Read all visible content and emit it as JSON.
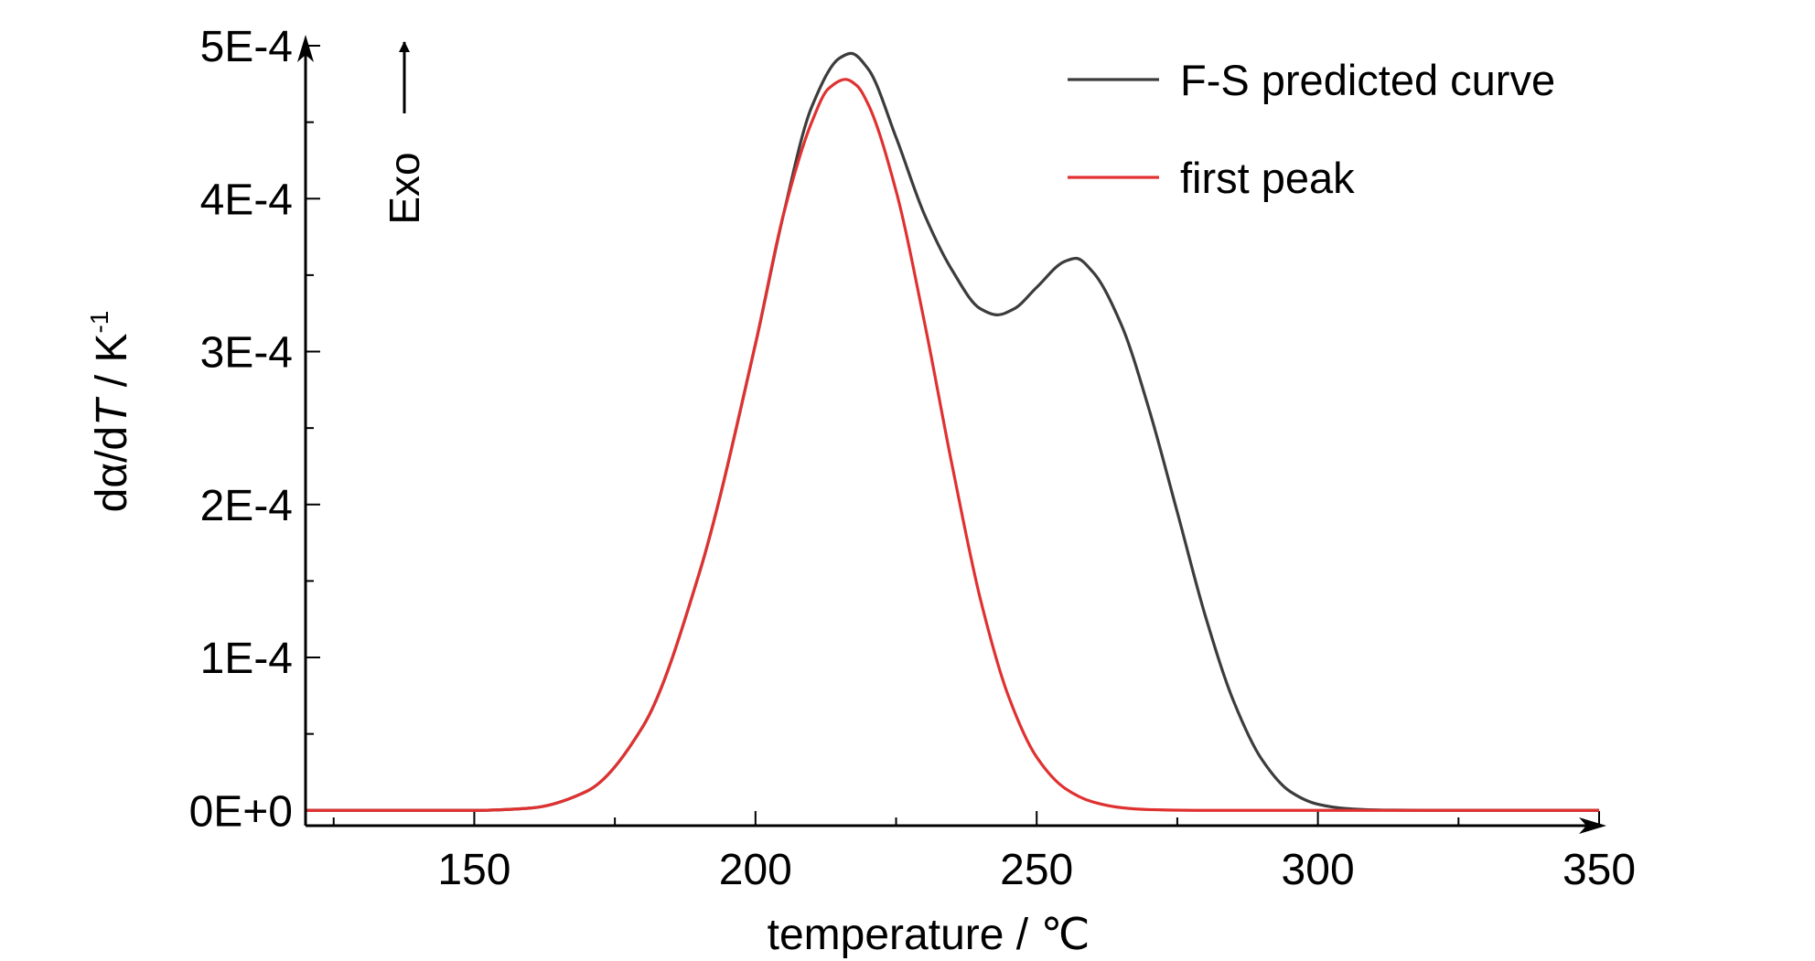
{
  "chart_data": {
    "type": "line",
    "title": "",
    "xlabel": "temperature / ℃",
    "ylabel_parts": [
      "dα/d",
      "T",
      " / K",
      "-1"
    ],
    "xlim": [
      120,
      350
    ],
    "ylim": [
      -1e-05,
      0.0005
    ],
    "x_ticks": [
      150,
      200,
      250,
      300,
      350
    ],
    "x_tick_labels": [
      "150",
      "200",
      "250",
      "300",
      "350"
    ],
    "y_ticks": [
      0,
      0.0001,
      0.0002,
      0.0003,
      0.0004,
      0.0005
    ],
    "y_tick_labels": [
      "0E+0",
      "1E-4",
      "2E-4",
      "3E-4",
      "4E-4",
      "5E-4"
    ],
    "annotation": "Exo",
    "legend_position": "top-right",
    "grid": false,
    "series": [
      {
        "name": "F-S predicted curve",
        "color": "#3c3c3c",
        "x": [
          120,
          150,
          160,
          170,
          180,
          190,
          200,
          205,
          210,
          215,
          217,
          220,
          225,
          230,
          235,
          240,
          243,
          246,
          250,
          255,
          257,
          260,
          265,
          270,
          275,
          280,
          285,
          290,
          295,
          300,
          305,
          310,
          320,
          350
        ],
        "y": [
          0,
          0,
          1.5e-06,
          1.25e-05,
          5.5e-05,
          0.000155,
          0.000305,
          0.00039,
          0.00046,
          0.000492,
          0.000495,
          0.000485,
          0.00044,
          0.00039,
          0.000353,
          0.000328,
          0.000324,
          0.000328,
          0.000342,
          0.000359,
          0.000361,
          0.000352,
          0.000318,
          0.000262,
          0.000195,
          0.000127,
          7.15e-05,
          3.35e-05,
          1.25e-05,
          4e-06,
          1.2e-06,
          3e-07,
          0,
          0
        ]
      },
      {
        "name": "first peak",
        "color": "#e03131",
        "x": [
          120,
          150,
          160,
          170,
          180,
          190,
          200,
          205,
          210,
          213,
          216,
          218,
          220,
          225,
          230,
          235,
          240,
          245,
          250,
          255,
          260,
          265,
          270,
          280,
          290,
          300,
          350
        ],
        "y": [
          0,
          0,
          1.5e-06,
          1.25e-05,
          5.5e-05,
          0.000155,
          0.000305,
          0.00039,
          0.00045,
          0.000472,
          0.000478,
          0.000474,
          0.000462,
          0.000405,
          0.00032,
          0.000225,
          0.000138,
          7.45e-05,
          3.48e-05,
          1.45e-05,
          5.5e-06,
          1.8e-06,
          5e-07,
          0,
          0,
          0,
          0
        ]
      }
    ]
  }
}
